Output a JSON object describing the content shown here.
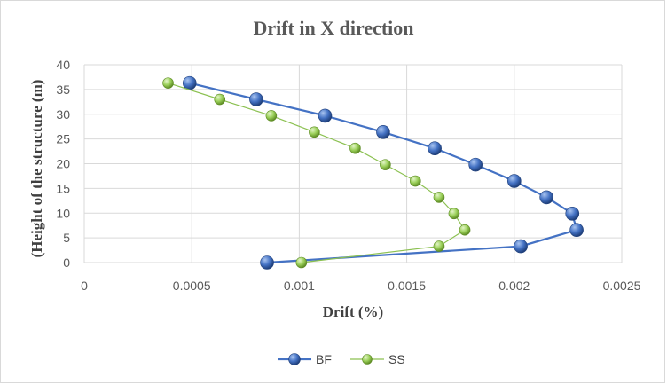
{
  "chart_data": {
    "type": "line",
    "title": "Drift in X direction",
    "xlabel": "Drift (%)",
    "ylabel": "(Height of the structure (m)",
    "xlim": [
      0,
      0.0025
    ],
    "ylim": [
      0,
      40
    ],
    "x_ticks": [
      "0",
      "0.0005",
      "0.001",
      "0.0015",
      "0.002",
      "0.0025"
    ],
    "y_ticks": [
      "0",
      "5",
      "10",
      "15",
      "20",
      "25",
      "30",
      "35",
      "40"
    ],
    "grid": true,
    "legend_position": "bottom",
    "series": [
      {
        "name": "BF",
        "color": "#4472c4",
        "points": [
          {
            "x": 0.00085,
            "y": 0
          },
          {
            "x": 0.00203,
            "y": 3.3
          },
          {
            "x": 0.00229,
            "y": 6.6
          },
          {
            "x": 0.00227,
            "y": 9.9
          },
          {
            "x": 0.00215,
            "y": 13.2
          },
          {
            "x": 0.002,
            "y": 16.5
          },
          {
            "x": 0.00182,
            "y": 19.8
          },
          {
            "x": 0.00163,
            "y": 23.1
          },
          {
            "x": 0.00139,
            "y": 26.4
          },
          {
            "x": 0.00112,
            "y": 29.7
          },
          {
            "x": 0.0008,
            "y": 33.0
          },
          {
            "x": 0.00049,
            "y": 36.3
          }
        ]
      },
      {
        "name": "SS",
        "color": "#92d050",
        "points": [
          {
            "x": 0.00101,
            "y": 0
          },
          {
            "x": 0.00165,
            "y": 3.3
          },
          {
            "x": 0.00177,
            "y": 6.6
          },
          {
            "x": 0.00172,
            "y": 9.9
          },
          {
            "x": 0.00165,
            "y": 13.2
          },
          {
            "x": 0.00154,
            "y": 16.5
          },
          {
            "x": 0.0014,
            "y": 19.8
          },
          {
            "x": 0.00126,
            "y": 23.1
          },
          {
            "x": 0.00107,
            "y": 26.4
          },
          {
            "x": 0.00087,
            "y": 29.7
          },
          {
            "x": 0.00063,
            "y": 33.0
          },
          {
            "x": 0.00039,
            "y": 36.3
          }
        ]
      }
    ]
  }
}
